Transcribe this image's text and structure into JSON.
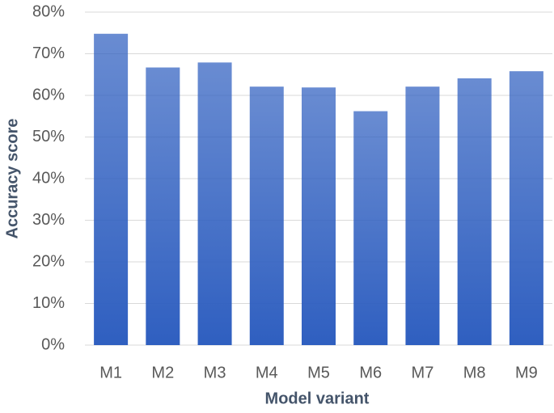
{
  "chart_data": {
    "type": "bar",
    "x_label": "Model variant",
    "y_label": "Accuracy score",
    "categories": [
      "M1",
      "M2",
      "M3",
      "M4",
      "M5",
      "M6",
      "M7",
      "M8",
      "M9"
    ],
    "values": [
      74.8,
      66.7,
      67.9,
      62.1,
      61.9,
      56.2,
      62.1,
      64.1,
      65.8
    ],
    "color": "#2f5fc0",
    "ylim": [
      0,
      80
    ],
    "yticks": [
      {
        "value": 0,
        "label": "0%"
      },
      {
        "value": 10,
        "label": "10%"
      },
      {
        "value": 20,
        "label": "20%"
      },
      {
        "value": 30,
        "label": "30%"
      },
      {
        "value": 40,
        "label": "40%"
      },
      {
        "value": 50,
        "label": "50%"
      },
      {
        "value": 60,
        "label": "60%"
      },
      {
        "value": 70,
        "label": "70%"
      },
      {
        "value": 80,
        "label": "80%"
      }
    ],
    "grid": true
  }
}
